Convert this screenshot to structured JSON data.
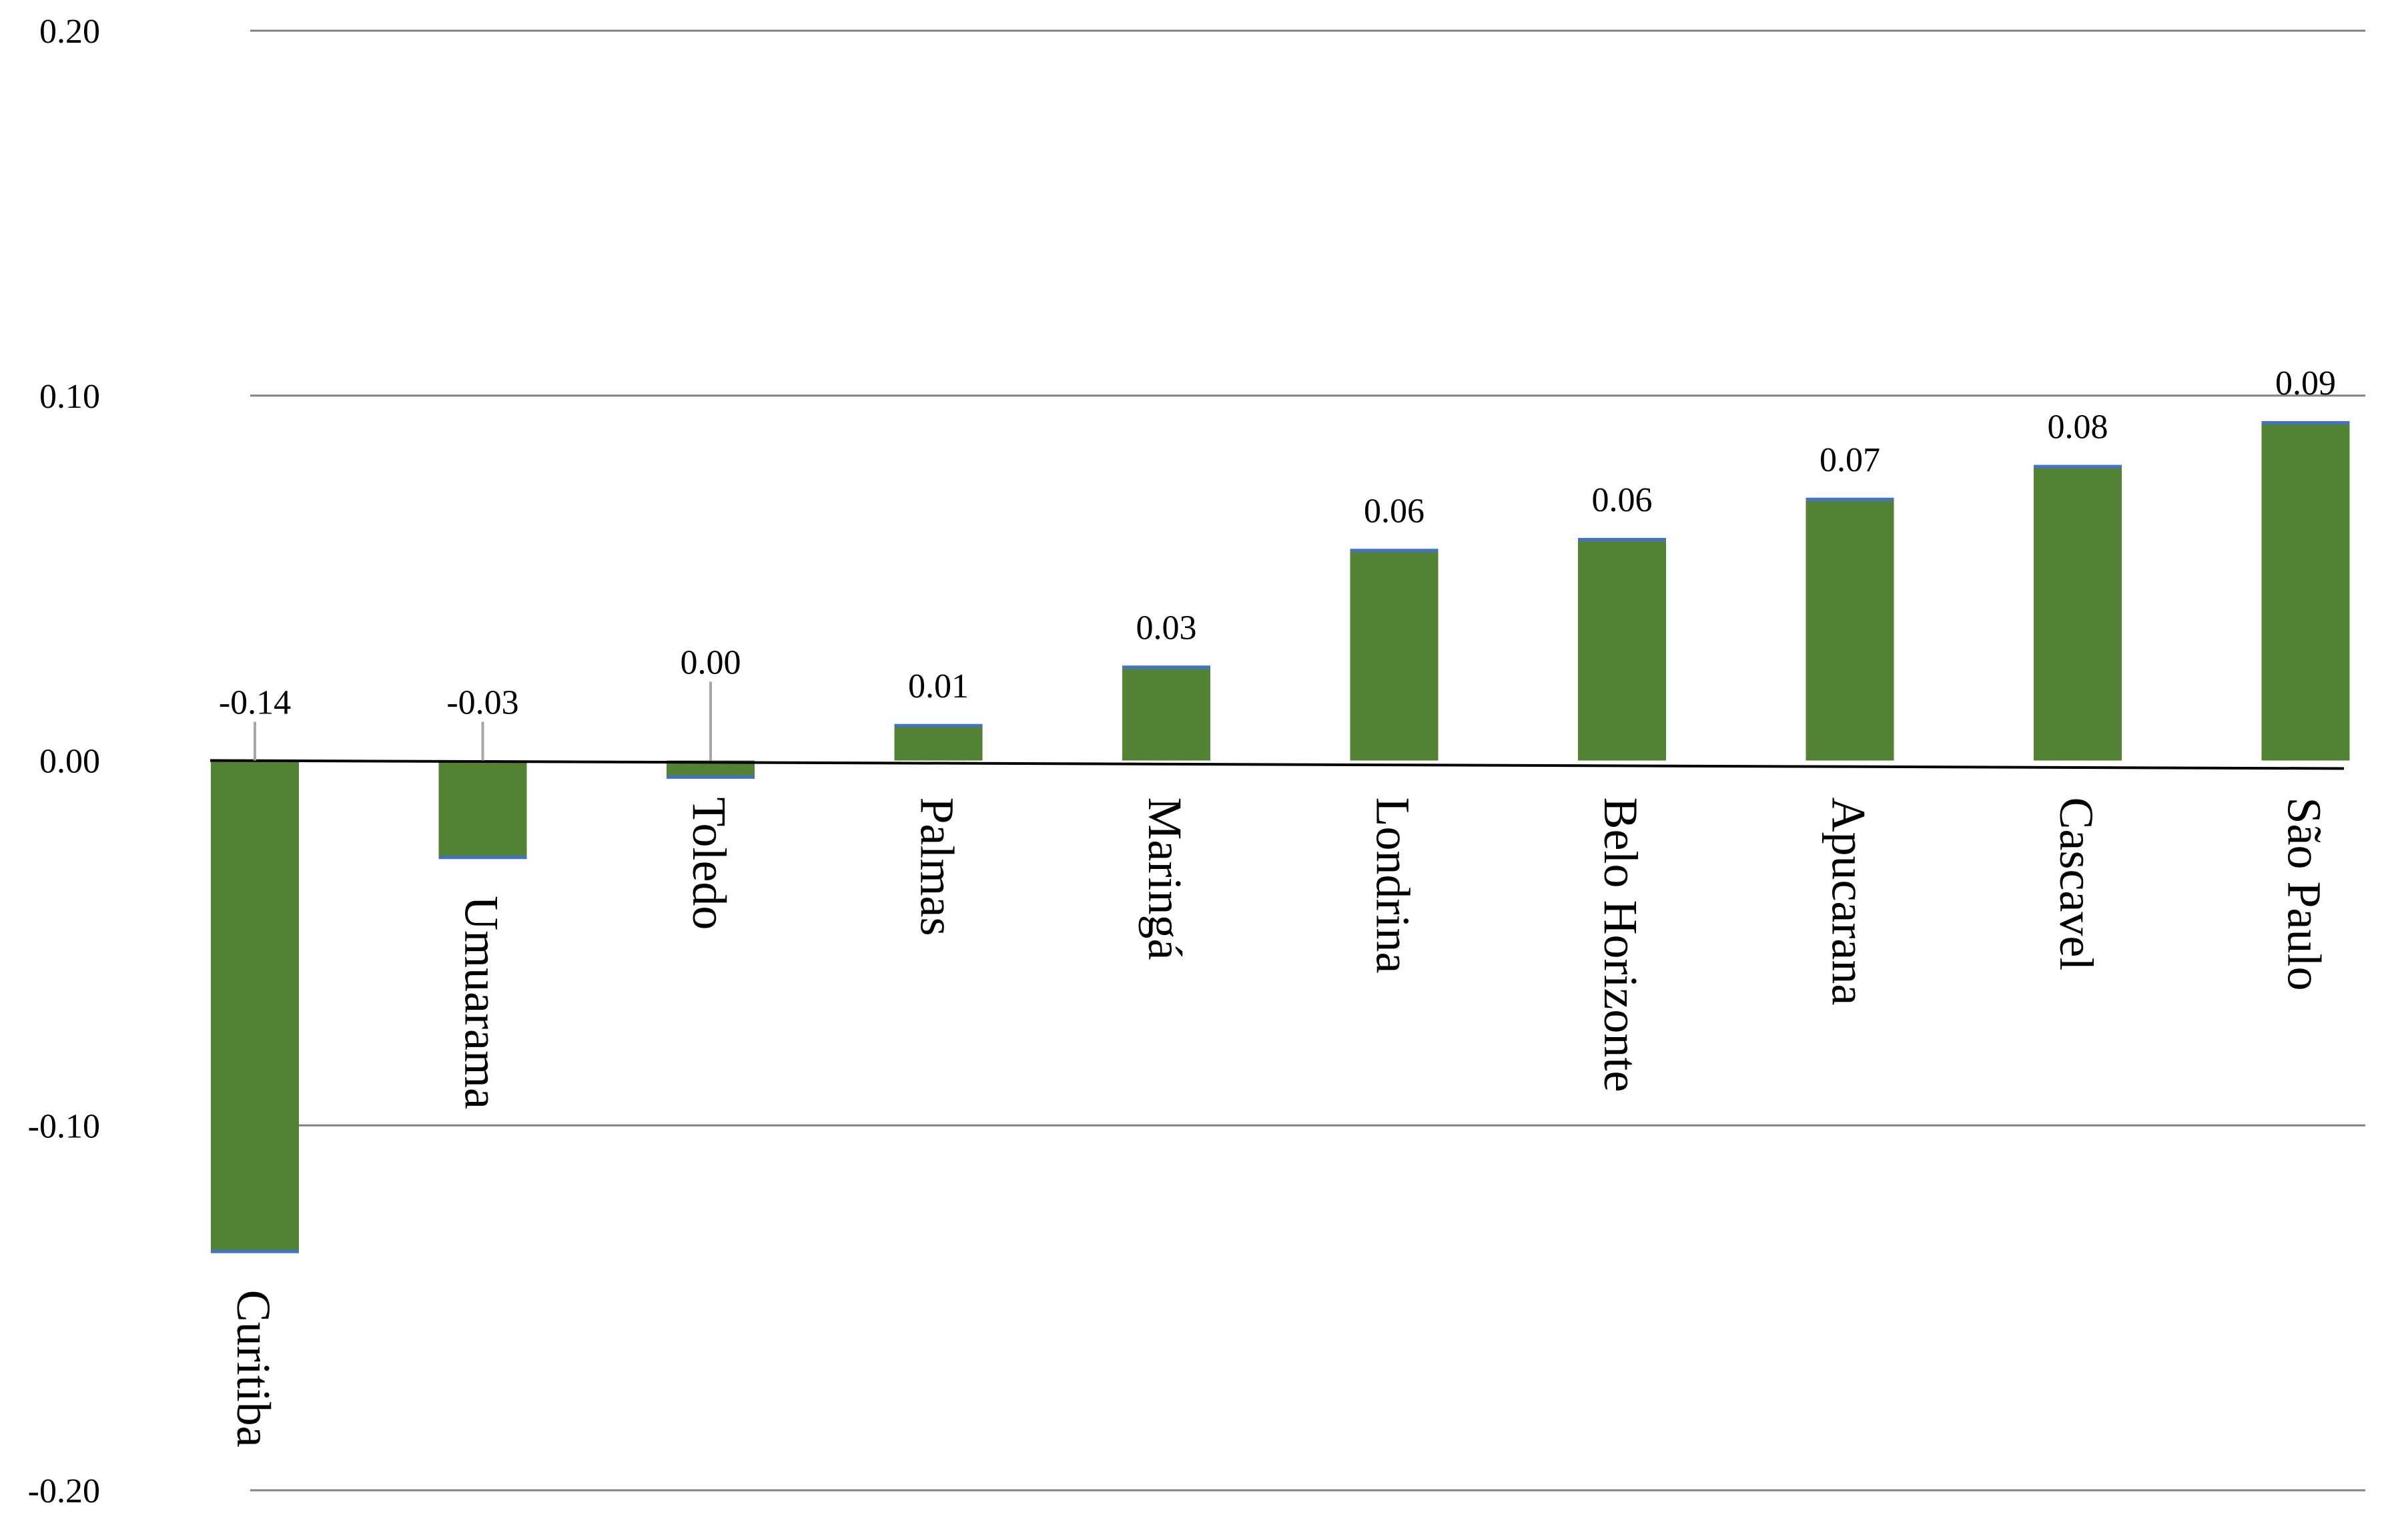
{
  "chart_data": {
    "type": "bar",
    "title": "",
    "xlabel": "",
    "ylabel": "",
    "categories": [
      "Curitiba",
      "Umuarama",
      "Toledo",
      "Palmas",
      "Maringá",
      "Londrina",
      "Belo Horizonte",
      "Apucarana",
      "Cascavel",
      "São Paulo"
    ],
    "values": [
      -0.135,
      -0.027,
      -0.005,
      0.01,
      0.026,
      0.058,
      0.061,
      0.072,
      0.081,
      0.093
    ],
    "data_labels": [
      "-0.14",
      "-0.03",
      "0.00",
      "0.01",
      "0.03",
      "0.06",
      "0.06",
      "0.07",
      "0.08",
      "0.09"
    ],
    "y_ticks": [
      0.2,
      0.1,
      0.0,
      -0.1,
      -0.2
    ],
    "y_tick_labels": [
      "0.20",
      "0.10",
      "0.00",
      "-0.10",
      "-0.20"
    ],
    "ylim": [
      -0.2,
      0.2
    ],
    "grid": true,
    "legend": "none",
    "colors": {
      "bar": "#548235",
      "bar_edge": "#4472c4",
      "grid": "#808080",
      "axis": "#000000",
      "leader": "#a6a6a6"
    }
  }
}
